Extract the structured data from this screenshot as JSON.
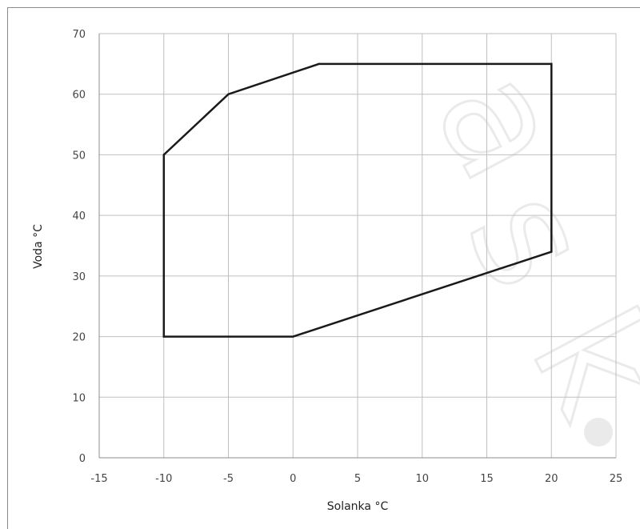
{
  "chart_data": {
    "type": "line",
    "title": "",
    "xlabel": "Solanka °C",
    "ylabel": "Voda °C",
    "xlim": [
      -15,
      25
    ],
    "ylim": [
      0,
      70
    ],
    "x_ticks": [
      -15,
      -10,
      -5,
      0,
      5,
      10,
      15,
      20,
      25
    ],
    "y_ticks": [
      0,
      10,
      20,
      30,
      40,
      50,
      60,
      70
    ],
    "grid": true,
    "legend": "none",
    "series": [
      {
        "x": [
          -10,
          -5,
          2,
          20,
          20,
          0,
          -10,
          -10
        ],
        "y": [
          50,
          60,
          65,
          65,
          34,
          20,
          20,
          50
        ]
      }
    ],
    "colors": {
      "line": "#1a1a1a",
      "grid": "#bfbfbf",
      "axis": "#8c8c8c"
    }
  }
}
